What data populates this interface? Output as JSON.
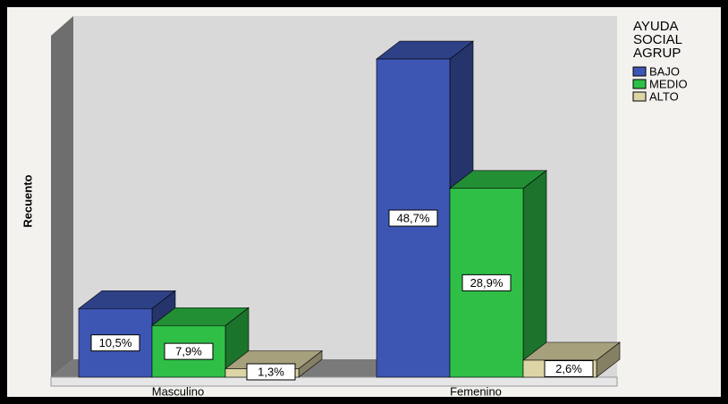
{
  "chart_data": {
    "type": "bar3d",
    "y_label": "Recuento",
    "categories": [
      "Masculino",
      "Femenino"
    ],
    "legend_title": [
      "AYUDA",
      "SOCIAL",
      "AGRUP"
    ],
    "series": [
      {
        "name": "BAJO",
        "color": "#3e56b3",
        "values": [
          10.5,
          48.7
        ],
        "value_labels": [
          "10,5%",
          "48,7%"
        ]
      },
      {
        "name": "MEDIO",
        "color": "#2fbf47",
        "values": [
          7.9,
          28.9
        ],
        "value_labels": [
          "7,9%",
          "28,9%"
        ]
      },
      {
        "name": "ALTO",
        "color": "#ddd5a6",
        "values": [
          1.3,
          2.6
        ],
        "value_labels": [
          "1,3%",
          "2,6%"
        ]
      }
    ],
    "ylim": [
      0,
      55
    ]
  }
}
